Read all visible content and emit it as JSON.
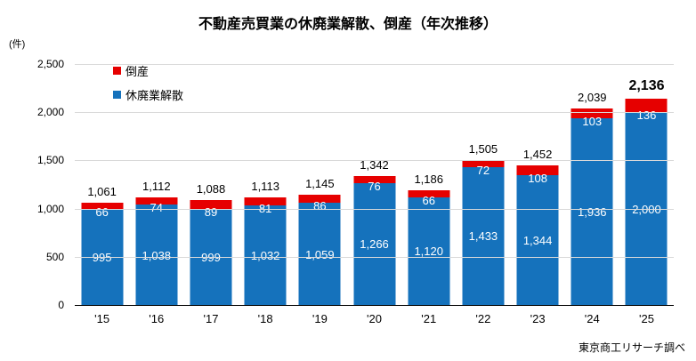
{
  "page": {
    "background": "#ffffff"
  },
  "chart_data": {
    "type": "bar",
    "variant": "stacked",
    "title": "不動産売買業の休廃業解散、倒産（年次推移）",
    "unit_label": "(件)",
    "source": "東京商工リサーチ調べ",
    "categories": [
      "'15",
      "'16",
      "'17",
      "'18",
      "'19",
      "'20",
      "'21",
      "'22",
      "'23",
      "'24",
      "'25"
    ],
    "series": [
      {
        "name": "休廃業解散",
        "color": "#1572BC",
        "values": [
          995,
          1038,
          999,
          1032,
          1059,
          1266,
          1120,
          1433,
          1344,
          1936,
          2000
        ]
      },
      {
        "name": "倒産",
        "color": "#E60000",
        "values": [
          66,
          74,
          89,
          81,
          86,
          76,
          66,
          72,
          108,
          103,
          136
        ]
      }
    ],
    "totals": [
      1061,
      1112,
      1088,
      1113,
      1145,
      1342,
      1186,
      1505,
      1452,
      2039,
      2136
    ],
    "total_emphasis_index": 10,
    "ylim": [
      0,
      2500
    ],
    "ytick_step": 500,
    "yticks": [
      "0",
      "500",
      "1,000",
      "1,500",
      "2,000",
      "2,500"
    ],
    "grid": "horizontal",
    "gridline_color": "#d9d9d9",
    "axis_color": "#000000",
    "legend": [
      {
        "label": "倒産",
        "color": "#E60000"
      },
      {
        "label": "休廃業解散",
        "color": "#1572BC"
      }
    ],
    "legend_position": "top-left-inside"
  }
}
